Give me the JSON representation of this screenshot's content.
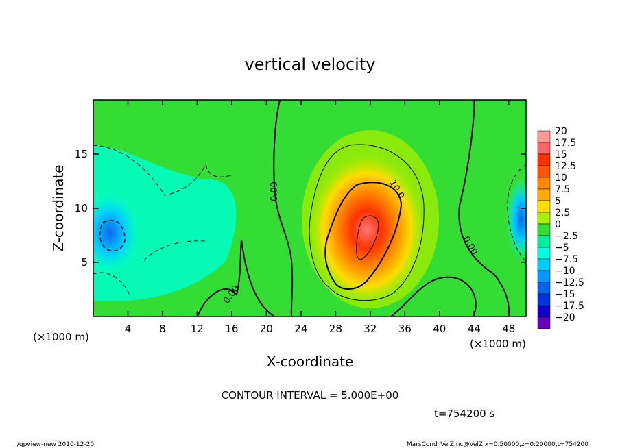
{
  "chart_data": {
    "type": "heatmap",
    "title": "vertical velocity",
    "xlabel": "X-coordinate",
    "ylabel": "Z-coordinate",
    "x_unit_left": "(×1000 m)",
    "x_unit_right": "(×1000 m)",
    "xlim": [
      0,
      50
    ],
    "ylim": [
      0,
      20
    ],
    "x_ticks": [
      4,
      8,
      12,
      16,
      20,
      24,
      28,
      32,
      36,
      40,
      44,
      48
    ],
    "y_ticks": [
      5,
      10,
      15
    ],
    "colorbar": {
      "labels": [
        "20",
        "17.5",
        "15",
        "12.5",
        "10",
        "7.5",
        "5",
        "2.5",
        "0",
        "−2.5",
        "−5",
        "−7.5",
        "−10",
        "−12.5",
        "−15",
        "−17.5",
        "−20"
      ],
      "colors": [
        "#ff9999",
        "#ff6666",
        "#ff3300",
        "#ff5500",
        "#ff8800",
        "#ffaa00",
        "#ffdd00",
        "#aaee00",
        "#33dd33",
        "#00ee99",
        "#00ffdd",
        "#00ccff",
        "#0099ff",
        "#0066ee",
        "#0033dd",
        "#1100cc",
        "#6600bb"
      ]
    },
    "contour_labels": [
      "0.00",
      "10.0",
      "0.00",
      "0.00"
    ],
    "contour_interval_text": "CONTOUR INTERVAL = 5.000E+00",
    "time_text": "t=754200 s",
    "footer_left": "./gpview-new   2010-12-20",
    "footer_right": "MarsCond_VelZ.nc@VelZ,x=0:50000,z=0:20000,t=754200",
    "features": [
      {
        "name": "updraft core",
        "x_center": 31,
        "z_center": 7,
        "peak": 17.5
      },
      {
        "name": "downdraft",
        "x_center": 1.5,
        "z_center": 7.5,
        "min": -10
      }
    ]
  }
}
